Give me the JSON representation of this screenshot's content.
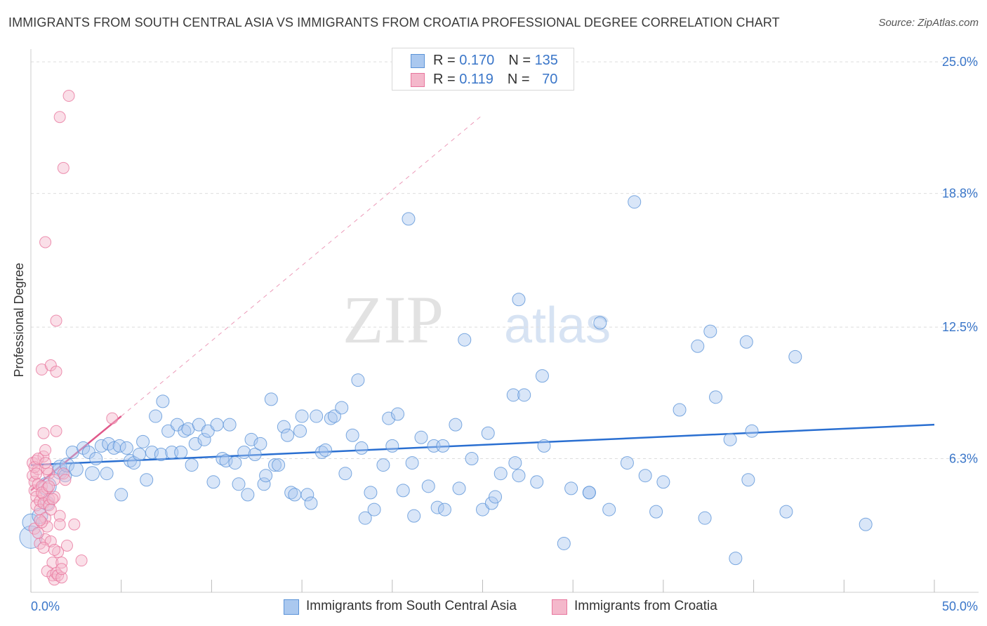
{
  "title": "IMMIGRANTS FROM SOUTH CENTRAL ASIA VS IMMIGRANTS FROM CROATIA PROFESSIONAL DEGREE CORRELATION CHART",
  "source": "Source: ZipAtlas.com",
  "watermark": {
    "zip": "ZIP",
    "atlas": "atlas"
  },
  "legend": {
    "rows": [
      {
        "r_label": "R = ",
        "r_value": "0.170",
        "n_label": "N = ",
        "n_value": "135"
      },
      {
        "r_label": "R = ",
        "r_value": "0.119",
        "n_label": "N = ",
        "n_value": "70"
      }
    ]
  },
  "chart_data": {
    "type": "scatter",
    "ylabel": "Professional Degree",
    "xlim": [
      0,
      50
    ],
    "ylim": [
      0,
      25.6
    ],
    "x_tick_labels": [
      {
        "value": 0,
        "label": "0.0%"
      },
      {
        "value": 50,
        "label": "50.0%"
      }
    ],
    "y_tick_labels": [
      {
        "value": 6.3,
        "label": "6.3%"
      },
      {
        "value": 12.5,
        "label": "12.5%"
      },
      {
        "value": 18.8,
        "label": "18.8%"
      },
      {
        "value": 25.0,
        "label": "25.0%"
      }
    ],
    "grid": true,
    "colors": {
      "blue_fill": "#aac8ef",
      "blue_stroke": "#5b93d8",
      "blue_line": "#2a6fd1",
      "pink_fill": "#f4b8cb",
      "pink_stroke": "#e8779e",
      "pink_line": "#e0588a",
      "grid": "#dddddd",
      "axis_label": "#3a76c9"
    },
    "series": [
      {
        "name": "Immigrants from South Central Asia",
        "color": "#aac8ef",
        "trend": {
          "x": [
            0,
            50
          ],
          "y": [
            6.0,
            7.9
          ]
        },
        "points": [
          [
            0.0,
            2.6,
            1.6
          ],
          [
            0.0,
            3.3,
            1.2
          ],
          [
            0.5,
            3.6,
            1.1
          ],
          [
            0.9,
            4.2,
            1.0
          ],
          [
            0.9,
            5.0,
            1.3
          ],
          [
            1.6,
            5.7,
            1.1
          ],
          [
            1.6,
            5.9,
            1.0
          ],
          [
            1.9,
            5.5,
            0.9
          ],
          [
            2.0,
            6.0,
            1.0
          ],
          [
            2.3,
            6.6,
            0.9
          ],
          [
            2.5,
            5.8,
            1.0
          ],
          [
            2.9,
            6.8,
            0.9
          ],
          [
            3.2,
            6.6,
            0.9
          ],
          [
            3.4,
            5.6,
            1.0
          ],
          [
            3.6,
            6.3,
            0.9
          ],
          [
            3.9,
            6.9,
            0.9
          ],
          [
            4.2,
            5.6,
            0.9
          ],
          [
            4.3,
            7.0,
            0.9
          ],
          [
            4.6,
            6.8,
            0.9
          ],
          [
            4.9,
            6.9,
            0.9
          ],
          [
            5.0,
            4.6,
            0.9
          ],
          [
            5.3,
            6.8,
            0.9
          ],
          [
            5.5,
            6.2,
            0.9
          ],
          [
            5.7,
            6.1,
            0.9
          ],
          [
            6.0,
            6.5,
            0.9
          ],
          [
            6.2,
            7.1,
            0.9
          ],
          [
            6.4,
            5.3,
            0.9
          ],
          [
            6.7,
            6.6,
            0.9
          ],
          [
            6.9,
            8.3,
            0.9
          ],
          [
            7.2,
            6.5,
            0.9
          ],
          [
            7.3,
            9.0,
            0.9
          ],
          [
            7.6,
            7.6,
            0.9
          ],
          [
            7.8,
            6.6,
            0.9
          ],
          [
            8.1,
            7.9,
            0.9
          ],
          [
            8.3,
            6.6,
            0.9
          ],
          [
            8.5,
            7.6,
            0.9
          ],
          [
            8.7,
            7.7,
            0.9
          ],
          [
            8.9,
            6.0,
            0.9
          ],
          [
            9.1,
            7.0,
            0.9
          ],
          [
            9.3,
            7.9,
            0.9
          ],
          [
            9.6,
            7.2,
            0.9
          ],
          [
            9.8,
            7.6,
            0.9
          ],
          [
            10.1,
            5.2,
            0.9
          ],
          [
            10.3,
            7.9,
            0.9
          ],
          [
            10.6,
            6.3,
            0.9
          ],
          [
            10.8,
            6.2,
            0.9
          ],
          [
            11.0,
            7.9,
            0.9
          ],
          [
            11.3,
            6.1,
            0.9
          ],
          [
            11.5,
            5.1,
            0.9
          ],
          [
            11.8,
            6.6,
            0.9
          ],
          [
            12.0,
            4.6,
            0.9
          ],
          [
            12.2,
            7.2,
            0.9
          ],
          [
            12.4,
            6.5,
            0.9
          ],
          [
            12.7,
            7.0,
            0.9
          ],
          [
            12.9,
            5.1,
            0.9
          ],
          [
            13.0,
            5.5,
            0.9
          ],
          [
            13.3,
            9.1,
            0.9
          ],
          [
            13.5,
            6.0,
            0.9
          ],
          [
            13.7,
            6.0,
            0.9
          ],
          [
            14.0,
            7.8,
            0.9
          ],
          [
            14.2,
            7.4,
            0.9
          ],
          [
            14.4,
            4.7,
            0.9
          ],
          [
            14.6,
            4.6,
            0.9
          ],
          [
            14.9,
            7.6,
            0.9
          ],
          [
            15.0,
            8.3,
            0.9
          ],
          [
            15.3,
            4.6,
            0.9
          ],
          [
            15.5,
            4.2,
            0.9
          ],
          [
            15.8,
            8.3,
            0.9
          ],
          [
            16.1,
            6.6,
            0.9
          ],
          [
            16.3,
            6.7,
            0.9
          ],
          [
            16.6,
            8.2,
            0.9
          ],
          [
            16.8,
            8.3,
            0.9
          ],
          [
            17.2,
            8.7,
            0.9
          ],
          [
            17.4,
            5.6,
            0.9
          ],
          [
            17.8,
            7.4,
            0.9
          ],
          [
            18.1,
            10.0,
            0.9
          ],
          [
            18.3,
            6.8,
            0.9
          ],
          [
            18.5,
            3.5,
            0.9
          ],
          [
            18.8,
            4.7,
            0.9
          ],
          [
            19.0,
            3.9,
            0.9
          ],
          [
            19.5,
            6.0,
            0.9
          ],
          [
            19.8,
            8.2,
            0.9
          ],
          [
            20.0,
            6.9,
            0.9
          ],
          [
            20.3,
            8.4,
            0.9
          ],
          [
            20.6,
            4.8,
            0.9
          ],
          [
            20.9,
            17.6,
            0.9
          ],
          [
            21.1,
            6.1,
            0.9
          ],
          [
            21.2,
            3.6,
            0.9
          ],
          [
            21.6,
            7.3,
            0.9
          ],
          [
            22.0,
            5.0,
            0.9
          ],
          [
            22.3,
            6.9,
            0.9
          ],
          [
            22.5,
            4.0,
            0.9
          ],
          [
            22.8,
            6.9,
            0.9
          ],
          [
            22.9,
            3.9,
            0.9
          ],
          [
            23.5,
            7.9,
            0.9
          ],
          [
            23.7,
            4.9,
            0.9
          ],
          [
            24.0,
            11.9,
            0.9
          ],
          [
            24.4,
            6.3,
            0.9
          ],
          [
            25.0,
            3.9,
            0.9
          ],
          [
            25.3,
            7.5,
            0.9
          ],
          [
            25.5,
            4.2,
            0.9
          ],
          [
            25.7,
            4.5,
            0.9
          ],
          [
            26.0,
            5.6,
            0.9
          ],
          [
            26.7,
            9.3,
            0.9
          ],
          [
            26.8,
            6.1,
            0.9
          ],
          [
            27.0,
            5.5,
            0.9
          ],
          [
            27.0,
            13.8,
            0.9
          ],
          [
            27.3,
            9.3,
            0.9
          ],
          [
            28.0,
            5.2,
            0.9
          ],
          [
            28.3,
            10.2,
            0.9
          ],
          [
            28.4,
            6.9,
            0.9
          ],
          [
            29.5,
            2.3,
            0.9
          ],
          [
            29.9,
            4.9,
            0.9
          ],
          [
            30.9,
            4.7,
            0.9
          ],
          [
            30.9,
            4.7,
            0.9
          ],
          [
            31.5,
            12.7,
            0.9
          ],
          [
            32.0,
            3.9,
            0.9
          ],
          [
            33.0,
            6.1,
            0.9
          ],
          [
            33.4,
            18.4,
            0.9
          ],
          [
            34.0,
            5.5,
            0.9
          ],
          [
            34.6,
            3.8,
            0.9
          ],
          [
            35.0,
            5.2,
            0.9
          ],
          [
            35.9,
            8.6,
            0.9
          ],
          [
            36.9,
            11.6,
            0.9
          ],
          [
            37.3,
            3.5,
            0.9
          ],
          [
            37.6,
            12.3,
            0.9
          ],
          [
            37.9,
            9.2,
            0.9
          ],
          [
            38.7,
            7.2,
            0.9
          ],
          [
            39.0,
            1.6,
            0.9
          ],
          [
            39.6,
            11.8,
            0.9
          ],
          [
            39.7,
            5.3,
            0.9
          ],
          [
            39.9,
            7.6,
            0.9
          ],
          [
            41.8,
            3.8,
            0.9
          ],
          [
            42.3,
            11.1,
            0.9
          ],
          [
            46.2,
            3.2,
            0.9
          ]
        ]
      },
      {
        "name": "Immigrants from Croatia",
        "color": "#f4b8cb",
        "trend": {
          "x": [
            0,
            5.0
          ],
          "y": [
            4.8,
            8.3
          ],
          "dashed_to": [
            25.0,
            22.5
          ]
        },
        "points": [
          [
            0.1,
            6.1,
            0.8
          ],
          [
            0.1,
            5.5,
            0.8
          ],
          [
            0.2,
            5.2,
            0.8
          ],
          [
            0.2,
            4.8,
            0.8
          ],
          [
            0.3,
            4.5,
            0.8
          ],
          [
            0.3,
            4.1,
            0.8
          ],
          [
            0.3,
            6.2,
            0.8
          ],
          [
            0.4,
            5.8,
            0.8
          ],
          [
            0.4,
            5.1,
            0.8
          ],
          [
            0.5,
            4.3,
            0.8
          ],
          [
            0.5,
            3.9,
            0.8
          ],
          [
            0.5,
            2.3,
            0.8
          ],
          [
            0.6,
            10.5,
            0.8
          ],
          [
            0.6,
            5.0,
            0.8
          ],
          [
            0.7,
            4.6,
            0.8
          ],
          [
            0.7,
            4.2,
            0.8
          ],
          [
            0.7,
            6.4,
            0.8
          ],
          [
            0.7,
            7.5,
            0.8
          ],
          [
            0.8,
            3.5,
            0.8
          ],
          [
            0.8,
            2.5,
            0.8
          ],
          [
            0.8,
            16.5,
            0.8
          ],
          [
            0.8,
            6.7,
            0.8
          ],
          [
            0.9,
            4.9,
            0.8
          ],
          [
            0.9,
            3.1,
            0.8
          ],
          [
            0.9,
            1.0,
            0.8
          ],
          [
            1.0,
            4.4,
            0.8
          ],
          [
            1.0,
            5.6,
            0.8
          ],
          [
            1.0,
            4.1,
            0.8
          ],
          [
            1.1,
            10.7,
            0.8
          ],
          [
            1.1,
            2.4,
            0.8
          ],
          [
            1.2,
            0.8,
            0.8
          ],
          [
            1.2,
            1.4,
            0.8
          ],
          [
            1.3,
            0.6,
            0.8
          ],
          [
            1.3,
            5.3,
            0.8
          ],
          [
            1.3,
            4.5,
            0.8
          ],
          [
            1.4,
            10.4,
            0.8
          ],
          [
            1.4,
            12.8,
            0.8
          ],
          [
            1.4,
            7.6,
            0.8
          ],
          [
            1.4,
            0.9,
            0.8
          ],
          [
            1.5,
            1.9,
            0.8
          ],
          [
            1.5,
            0.8,
            0.8
          ],
          [
            1.6,
            3.6,
            0.8
          ],
          [
            1.6,
            3.2,
            0.8
          ],
          [
            1.6,
            22.4,
            0.8
          ],
          [
            1.7,
            0.7,
            0.8
          ],
          [
            1.7,
            1.4,
            0.8
          ],
          [
            1.8,
            20.0,
            0.8
          ],
          [
            1.8,
            5.6,
            0.8
          ],
          [
            1.9,
            5.3,
            0.8
          ],
          [
            2.0,
            2.2,
            0.8
          ],
          [
            2.1,
            23.4,
            0.8
          ],
          [
            2.4,
            3.2,
            0.8
          ],
          [
            2.8,
            1.5,
            0.8
          ],
          [
            4.5,
            8.2,
            0.8
          ],
          [
            0.2,
            3.0,
            0.8
          ],
          [
            0.4,
            2.8,
            0.8
          ],
          [
            0.6,
            3.3,
            0.8
          ],
          [
            0.2,
            5.9,
            0.8
          ],
          [
            0.3,
            5.6,
            0.8
          ],
          [
            0.6,
            4.7,
            0.8
          ],
          [
            0.9,
            5.8,
            0.8
          ],
          [
            1.1,
            3.9,
            0.8
          ],
          [
            1.3,
            2.0,
            0.8
          ],
          [
            0.4,
            6.3,
            0.8
          ],
          [
            0.8,
            6.1,
            0.8
          ],
          [
            1.0,
            5.0,
            0.8
          ],
          [
            1.2,
            4.4,
            0.8
          ],
          [
            0.5,
            3.4,
            0.8
          ],
          [
            1.7,
            1.1,
            0.8
          ],
          [
            0.7,
            2.1,
            0.8
          ]
        ]
      }
    ]
  }
}
